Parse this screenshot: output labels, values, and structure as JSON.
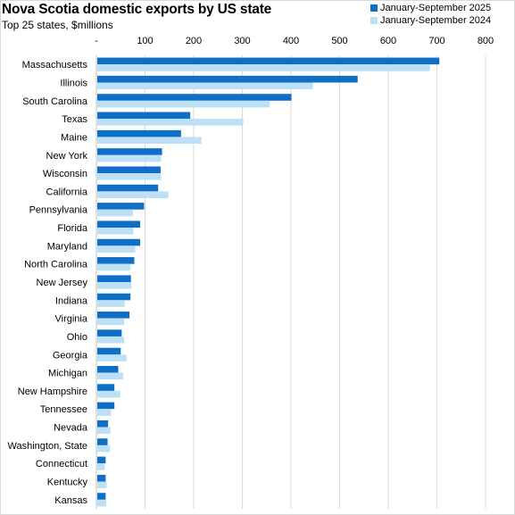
{
  "chart_data": {
    "type": "bar",
    "orientation": "horizontal",
    "title": "Nova Scotia domestic exports by US state",
    "subtitle": "Top 25 states, $millions",
    "xlim": [
      0,
      800
    ],
    "x_ticks": [
      "-",
      "100",
      "200",
      "300",
      "400",
      "500",
      "600",
      "700",
      "800"
    ],
    "x_axis_position": "top",
    "grid": "vertical",
    "legend_position": "top-right",
    "categories": [
      "Massachusetts",
      "Illinois",
      "South Carolina",
      "Texas",
      "Maine",
      "New York",
      "Wisconsin",
      "California",
      "Pennsylvania",
      "Florida",
      "Maryland",
      "North Carolina",
      "New Jersey",
      "Indiana",
      "Virginia",
      "Ohio",
      "Georgia",
      "Michigan",
      "New Hampshire",
      "Tennessee",
      "Nevada",
      "Washington, State",
      "Connecticut",
      "Kentucky",
      "Kansas"
    ],
    "series": [
      {
        "name": "January-September 2025",
        "color": "#0f6fc6",
        "values": [
          705,
          537,
          401,
          193,
          174,
          135,
          132,
          127,
          98,
          90,
          90,
          78,
          71,
          70,
          68,
          52,
          50,
          45,
          37,
          37,
          24,
          23,
          19,
          19,
          19
        ]
      },
      {
        "name": "January-September 2024",
        "color": "#bde0f6",
        "values": [
          686,
          445,
          356,
          302,
          216,
          133,
          133,
          148,
          75,
          76,
          80,
          70,
          72,
          58,
          57,
          57,
          62,
          55,
          49,
          30,
          29,
          28,
          17,
          21,
          20
        ]
      }
    ]
  },
  "colors": {
    "series_2025": "#0f6fc6",
    "series_2024": "#bde0f6",
    "grid": "#d9d9d9"
  }
}
